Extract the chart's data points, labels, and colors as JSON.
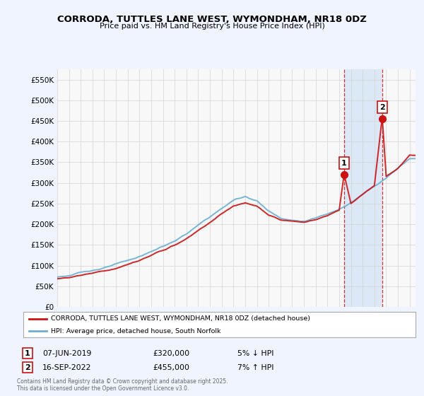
{
  "title": "CORRODA, TUTTLES LANE WEST, WYMONDHAM, NR18 0DZ",
  "subtitle": "Price paid vs. HM Land Registry's House Price Index (HPI)",
  "bg_color": "#f0f4ff",
  "plot_bg_color": "#f8f8f8",
  "highlight_bg_color": "#dce8f5",
  "legend_line1": "CORRODA, TUTTLES LANE WEST, WYMONDHAM, NR18 0DZ (detached house)",
  "legend_line2": "HPI: Average price, detached house, South Norfolk",
  "annotation1_label": "1",
  "annotation1_date": "07-JUN-2019",
  "annotation1_price": "£320,000",
  "annotation1_note": "5% ↓ HPI",
  "annotation1_year": 2019,
  "annotation1_month": 5,
  "annotation1_value": 320000,
  "annotation2_label": "2",
  "annotation2_date": "16-SEP-2022",
  "annotation2_price": "£455,000",
  "annotation2_note": "7% ↑ HPI",
  "annotation2_year": 2022,
  "annotation2_month": 8,
  "annotation2_value": 455000,
  "footer": "Contains HM Land Registry data © Crown copyright and database right 2025.\nThis data is licensed under the Open Government Licence v3.0.",
  "hpi_color": "#6baed6",
  "price_color": "#cc1111",
  "annotation_vline_color": "#cc1111",
  "ylim": [
    0,
    575000
  ],
  "yticks": [
    0,
    50000,
    100000,
    150000,
    200000,
    250000,
    300000,
    350000,
    400000,
    450000,
    500000,
    550000
  ],
  "xlim_start": 1995,
  "xlim_end": 2025.5,
  "hpi_key_points_x": [
    0,
    12,
    24,
    36,
    48,
    60,
    72,
    84,
    96,
    108,
    120,
    132,
    144,
    156,
    168,
    180,
    192,
    204,
    216,
    228,
    240,
    252,
    264,
    276,
    288,
    300,
    312,
    324,
    336,
    348,
    360
  ],
  "hpi_key_points_y": [
    72000,
    76000,
    82000,
    89000,
    95000,
    102000,
    110000,
    120000,
    132000,
    145000,
    158000,
    175000,
    195000,
    215000,
    235000,
    255000,
    265000,
    255000,
    230000,
    215000,
    210000,
    208000,
    215000,
    225000,
    240000,
    255000,
    275000,
    295000,
    315000,
    340000,
    365000
  ],
  "price_key_points_x": [
    0,
    12,
    24,
    36,
    48,
    60,
    72,
    84,
    96,
    108,
    120,
    132,
    144,
    156,
    168,
    180,
    192,
    204,
    216,
    228,
    240,
    252,
    264,
    276,
    288,
    293,
    300,
    312,
    324,
    332,
    336,
    348,
    360
  ],
  "price_key_points_y": [
    68000,
    72000,
    78000,
    84000,
    90000,
    96000,
    105000,
    115000,
    126000,
    138000,
    150000,
    165000,
    185000,
    205000,
    225000,
    245000,
    252000,
    242000,
    220000,
    207000,
    203000,
    200000,
    208000,
    218000,
    232000,
    320000,
    247000,
    268000,
    290000,
    455000,
    310000,
    330000,
    360000
  ]
}
